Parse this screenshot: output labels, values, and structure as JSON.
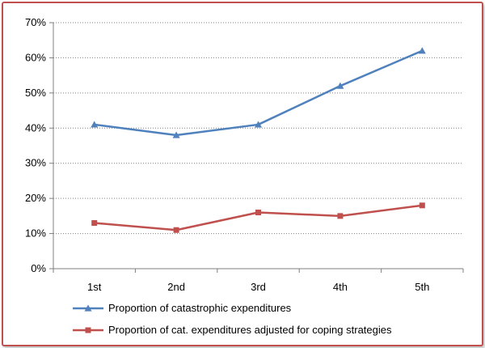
{
  "chart_data": {
    "type": "line",
    "title": "",
    "xlabel": "",
    "ylabel": "",
    "categories": [
      "1st",
      "2nd",
      "3rd",
      "4th",
      "5th"
    ],
    "ylim": [
      0,
      70
    ],
    "yticks": [
      "0%",
      "10%",
      "20%",
      "30%",
      "40%",
      "50%",
      "60%",
      "70%"
    ],
    "grid": "horizontal dotted",
    "legend_position": "bottom",
    "series": [
      {
        "name": "Proportion of catastrophic expenditures",
        "values": [
          41,
          38,
          41,
          52,
          62
        ],
        "color": "#4f81bd",
        "marker": "triangle"
      },
      {
        "name": "Proportion of cat. expenditures adjusted for coping strategies",
        "values": [
          13,
          11,
          16,
          15,
          18
        ],
        "color": "#c0504d",
        "marker": "square"
      }
    ]
  },
  "colors": {
    "frame": "#c0504d",
    "grid": "#808080",
    "axis": "#7f7f7f"
  }
}
